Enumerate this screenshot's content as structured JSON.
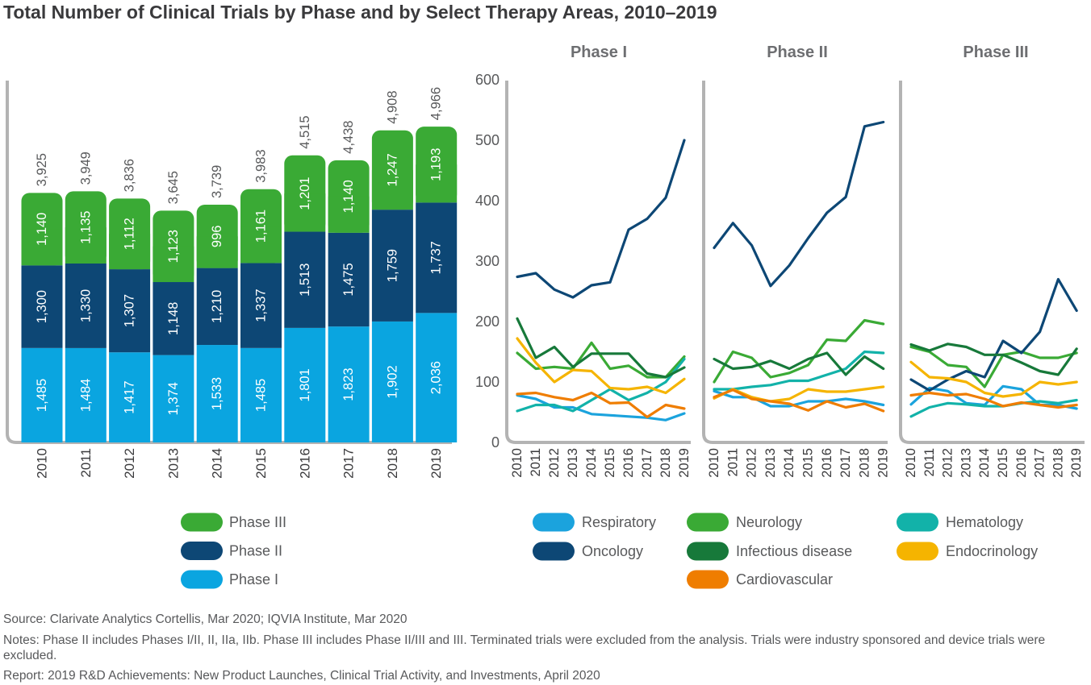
{
  "title": "Total Number of Clinical Trials by Phase and by Select Therapy Areas, 2010–2019",
  "footer": {
    "source": "Source: Clarivate Analytics Cortellis, Mar 2020; IQVIA Institute, Mar 2020",
    "notes": "Notes: Phase II includes Phases I/II, II, IIa, IIb. Phase III includes Phase II/III and III. Terminated  trials were excluded from the analysis. Trials were industry sponsored and device trials were excluded.",
    "report": "Report: 2019 R&D Achievements: New Product Launches, Clinical Trial Activity, and Investments, April 2020"
  },
  "chart_data": [
    {
      "type": "bar",
      "stacked": true,
      "categories": [
        "2010",
        "2011",
        "2012",
        "2013",
        "2014",
        "2015",
        "2016",
        "2017",
        "2018",
        "2019"
      ],
      "series": [
        {
          "name": "Phase I",
          "color": "#0aa5e0",
          "values": [
            1485,
            1484,
            1417,
            1374,
            1533,
            1485,
            1801,
            1823,
            1902,
            2036
          ],
          "labels": [
            "1,485",
            "1,484",
            "1,417",
            "1,374",
            "1,533",
            "1,485",
            "1,801",
            "1,823",
            "1,902",
            "2,036"
          ]
        },
        {
          "name": "Phase II",
          "color": "#0d4775",
          "values": [
            1300,
            1330,
            1307,
            1148,
            1210,
            1337,
            1513,
            1475,
            1759,
            1737
          ],
          "labels": [
            "1,300",
            "1,330",
            "1,307",
            "1,148",
            "1,210",
            "1,337",
            "1,513",
            "1,475",
            "1,759",
            "1,737"
          ]
        },
        {
          "name": "Phase III",
          "color": "#3aaa35",
          "values": [
            1140,
            1135,
            1112,
            1123,
            996,
            1161,
            1201,
            1140,
            1247,
            1193
          ],
          "labels": [
            "1,140",
            "1,135",
            "1,112",
            "1,123",
            "996",
            "1,161",
            "1,201",
            "1,140",
            "1,247",
            "1,193"
          ]
        }
      ],
      "totals": [
        3925,
        3949,
        3836,
        3645,
        3739,
        3983,
        4515,
        4438,
        4908,
        4966
      ],
      "total_labels": [
        "3,925",
        "3,949",
        "3,836",
        "3,645",
        "3,739",
        "3,983",
        "4,515",
        "4,438",
        "4,908",
        "4,966"
      ],
      "legend": [
        {
          "name": "Phase III",
          "color": "#3aaa35"
        },
        {
          "name": "Phase II",
          "color": "#0d4775"
        },
        {
          "name": "Phase I",
          "color": "#0aa5e0"
        }
      ]
    },
    {
      "type": "line",
      "panels": [
        "Phase I",
        "Phase II",
        "Phase III"
      ],
      "x": [
        "2010",
        "2011",
        "2012",
        "2013",
        "2014",
        "2015",
        "2016",
        "2017",
        "2018",
        "2019"
      ],
      "ylim": [
        0,
        600
      ],
      "yticks": [
        0,
        100,
        200,
        300,
        400,
        500,
        600
      ],
      "series": [
        {
          "name": "Respiratory",
          "color": "#1ba3dd",
          "panels": [
            [
              78,
              72,
              58,
              58,
              47,
              45,
              43,
              41,
              37,
              48
            ],
            [
              85,
              75,
              75,
              60,
              60,
              68,
              68,
              72,
              68,
              62
            ],
            [
              63,
              90,
              85,
              65,
              62,
              93,
              88,
              62,
              62,
              56
            ]
          ]
        },
        {
          "name": "Neurology",
          "color": "#3aaa35",
          "panels": [
            [
              148,
              122,
              125,
              122,
              165,
              122,
              127,
              108,
              108,
              142
            ],
            [
              100,
              150,
              140,
              108,
              115,
              128,
              170,
              168,
              202,
              196
            ],
            [
              158,
              150,
              128,
              125,
              92,
              145,
              150,
              140,
              140,
              148
            ]
          ]
        },
        {
          "name": "Hematology",
          "color": "#12b2a9",
          "panels": [
            [
              52,
              62,
              62,
              52,
              70,
              88,
              70,
              82,
              100,
              138
            ],
            [
              88,
              88,
              92,
              95,
              102,
              102,
              112,
              122,
              150,
              148
            ],
            [
              43,
              58,
              65,
              63,
              60,
              60,
              65,
              68,
              65,
              70
            ]
          ]
        },
        {
          "name": "Oncology",
          "color": "#0d4775",
          "panels": [
            [
              274,
              280,
              253,
              240,
              260,
              265,
              352,
              370,
              405,
              500
            ],
            [
              322,
              363,
              326,
              259,
              293,
              338,
              380,
              406,
              523,
              530
            ],
            [
              104,
              86,
              104,
              118,
              108,
              168,
              148,
              183,
              270,
              218
            ]
          ]
        },
        {
          "name": "Infectious disease",
          "color": "#17793a",
          "panels": [
            [
              205,
              140,
              158,
              125,
              147,
              147,
              147,
              114,
              108,
              124
            ],
            [
              138,
              122,
              125,
              135,
              122,
              138,
              148,
              112,
              142,
              122
            ],
            [
              162,
              152,
              163,
              158,
              145,
              145,
              132,
              118,
              112,
              155
            ]
          ]
        },
        {
          "name": "Endocrinology",
          "color": "#f5b400",
          "panels": [
            [
              172,
              132,
              100,
              120,
              118,
              90,
              88,
              92,
              82,
              105
            ],
            [
              73,
              88,
              75,
              68,
              72,
              88,
              84,
              84,
              88,
              92
            ],
            [
              133,
              108,
              106,
              100,
              82,
              76,
              80,
              100,
              96,
              100
            ]
          ]
        },
        {
          "name": "Cardiovascular",
          "color": "#ef7d00",
          "panels": [
            [
              80,
              82,
              75,
              70,
              82,
              65,
              66,
              42,
              62,
              56
            ],
            [
              75,
              87,
              72,
              68,
              64,
              53,
              68,
              58,
              64,
              52
            ],
            [
              78,
              82,
              78,
              80,
              72,
              60,
              66,
              62,
              58,
              62
            ]
          ]
        }
      ],
      "legend_order": [
        "Respiratory",
        "Neurology",
        "Hematology",
        "Oncology",
        "Infectious disease",
        "Endocrinology",
        "Cardiovascular"
      ]
    }
  ]
}
